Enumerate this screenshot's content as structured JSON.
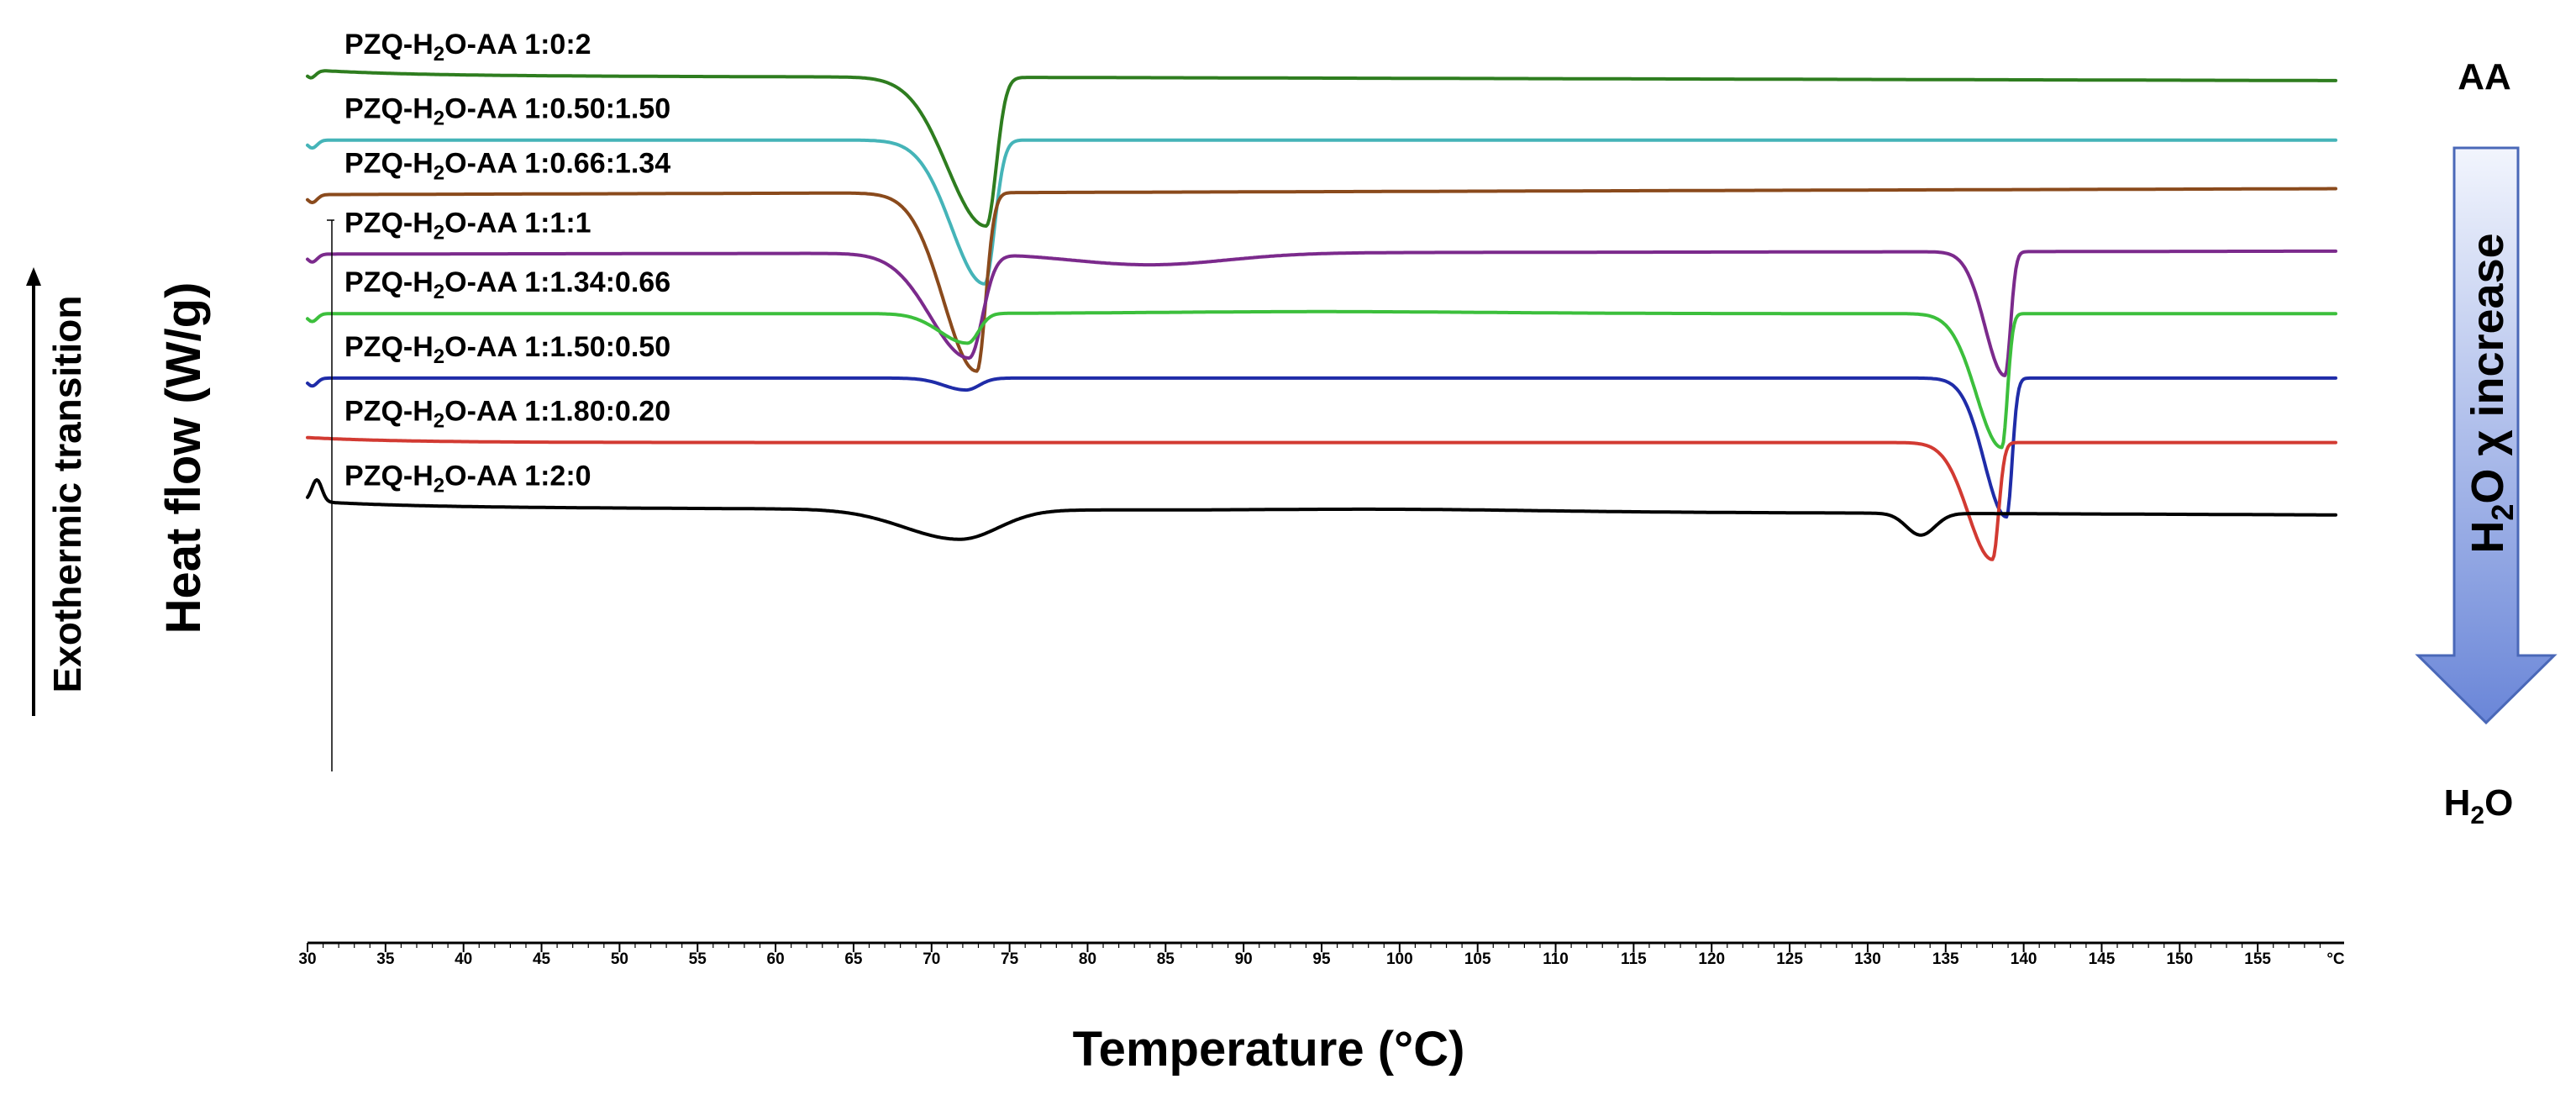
{
  "chart_data": {
    "type": "line",
    "title": "",
    "xlabel": "Temperature (°C)",
    "ylabel": "Heat flow (W/g)",
    "y_direction_label": "Exothermic transition",
    "x_unit_tick": "°C",
    "xlim": [
      30,
      160
    ],
    "x_ticks": [
      30,
      35,
      40,
      45,
      50,
      55,
      60,
      65,
      70,
      75,
      80,
      85,
      90,
      95,
      100,
      105,
      110,
      115,
      120,
      125,
      130,
      135,
      140,
      145,
      150,
      155
    ],
    "gradient_arrow": {
      "label_pre": "H",
      "label_sub": "2",
      "label_post": "O χ increase",
      "direction": "down"
    },
    "end_labels": {
      "top": {
        "text": "AA"
      },
      "bottom": {
        "pre": "H",
        "sub": "2",
        "post": "O"
      }
    },
    "series": [
      {
        "name": "PZQ-H2O-AA 1:0:2",
        "label_pre": "PZQ-H",
        "label_sub": "2",
        "label_post": "O-AA 1:0:2",
        "color": "#2e7d1f",
        "baseline": 0,
        "start_drift": 0.6,
        "end_drift": -0.5,
        "transients": [
          {
            "x": 30.2,
            "d": 0.8
          }
        ],
        "peaks": [
          {
            "x": 73.5,
            "depth": 15.0,
            "wl": 3.5,
            "wr": 0.9
          }
        ]
      },
      {
        "name": "PZQ-H2O-AA 1:0.50:1.50",
        "label_pre": "PZQ-H",
        "label_sub": "2",
        "label_post": "O-AA 1:0.50:1.50",
        "color": "#45b4b8",
        "baseline": -6.5,
        "start_drift": 0.0,
        "end_drift": 0.0,
        "transients": [
          {
            "x": 30.3,
            "d": 0.8
          }
        ],
        "peaks": [
          {
            "x": 73.4,
            "depth": 14.5,
            "wl": 3.0,
            "wr": 0.9
          }
        ]
      },
      {
        "name": "PZQ-H2O-AA 1:0.66:1.34",
        "label_pre": "PZQ-H",
        "label_sub": "2",
        "label_post": "O-AA 1:0.66:1.34",
        "color": "#8a4a1c",
        "baseline": -12.0,
        "start_drift": 0.0,
        "end_drift": 0.6,
        "transients": [
          {
            "x": 30.3,
            "d": 0.8
          }
        ],
        "peaks": [
          {
            "x": 72.9,
            "depth": 18.0,
            "wl": 3.0,
            "wr": 0.8
          }
        ]
      },
      {
        "name": "PZQ-H2O-AA 1:1:1",
        "label_pre": "PZQ-H",
        "label_sub": "2",
        "label_post": "O-AA 1:1:1",
        "color": "#7b2a8c",
        "baseline": -18.0,
        "start_drift": 0.0,
        "end_drift": 0.3,
        "transients": [
          {
            "x": 30.3,
            "d": 0.8
          }
        ],
        "humps": [
          {
            "x": 84,
            "h": -1.2,
            "w": 7
          }
        ],
        "peaks": [
          {
            "x": 72.4,
            "depth": 10.5,
            "wl": 3.5,
            "wr": 1.2
          },
          {
            "x": 138.8,
            "depth": 12.5,
            "wl": 1.8,
            "wr": 0.5
          }
        ]
      },
      {
        "name": "PZQ-H2O-AA 1:1.34:0.66",
        "label_pre": "PZQ-H",
        "label_sub": "2",
        "label_post": "O-AA 1:1.34:0.66",
        "color": "#3cbf3c",
        "baseline": -24.0,
        "start_drift": 0.0,
        "end_drift": 0.0,
        "transients": [
          {
            "x": 30.3,
            "d": 0.8
          }
        ],
        "humps": [
          {
            "x": 95,
            "h": 0.2,
            "w": 15
          }
        ],
        "peaks": [
          {
            "x": 72.3,
            "depth": 3.0,
            "wl": 2.5,
            "wr": 1.0
          },
          {
            "x": 138.6,
            "depth": 13.5,
            "wl": 2.3,
            "wr": 0.5
          }
        ]
      },
      {
        "name": "PZQ-H2O-AA 1:1.50:0.50",
        "label_pre": "PZQ-H",
        "label_sub": "2",
        "label_post": "O-AA 1:1.50:0.50",
        "color": "#1f2ca8",
        "baseline": -30.5,
        "start_drift": 0.0,
        "end_drift": 0.0,
        "transients": [
          {
            "x": 30.3,
            "d": 0.8
          }
        ],
        "peaks": [
          {
            "x": 72.2,
            "depth": 1.2,
            "wl": 2.0,
            "wr": 1.2
          },
          {
            "x": 138.9,
            "depth": 14.0,
            "wl": 2.0,
            "wr": 0.5
          }
        ]
      },
      {
        "name": "PZQ-H2O-AA 1:1.80:0.20",
        "label_pre": "PZQ-H",
        "label_sub": "2",
        "label_post": "O-AA 1:1.80:0.20",
        "color": "#d23a32",
        "baseline": -37.0,
        "start_drift": 0.5,
        "end_drift": 0.0,
        "transients": [],
        "peaks": [
          {
            "x": 138.0,
            "depth": 11.8,
            "wl": 2.2,
            "wr": 0.55
          }
        ]
      },
      {
        "name": "PZQ-H2O-AA 1:2:0",
        "label_pre": "PZQ-H",
        "label_sub": "2",
        "label_post": "O-AA 1:2:0",
        "color": "#000000",
        "baseline": -43.5,
        "start_drift": 0.6,
        "end_drift": -0.8,
        "transients": [
          {
            "x": 30.6,
            "d": -2.2
          }
        ],
        "humps": [
          {
            "x": 100,
            "h": 0.2,
            "w": 12
          }
        ],
        "peaks": [
          {
            "x": 71.8,
            "depth": 3.0,
            "wl": 5.0,
            "wr": 3.5
          },
          {
            "x": 133.4,
            "depth": 2.2,
            "wl": 1.3,
            "wr": 1.3
          }
        ]
      }
    ]
  }
}
